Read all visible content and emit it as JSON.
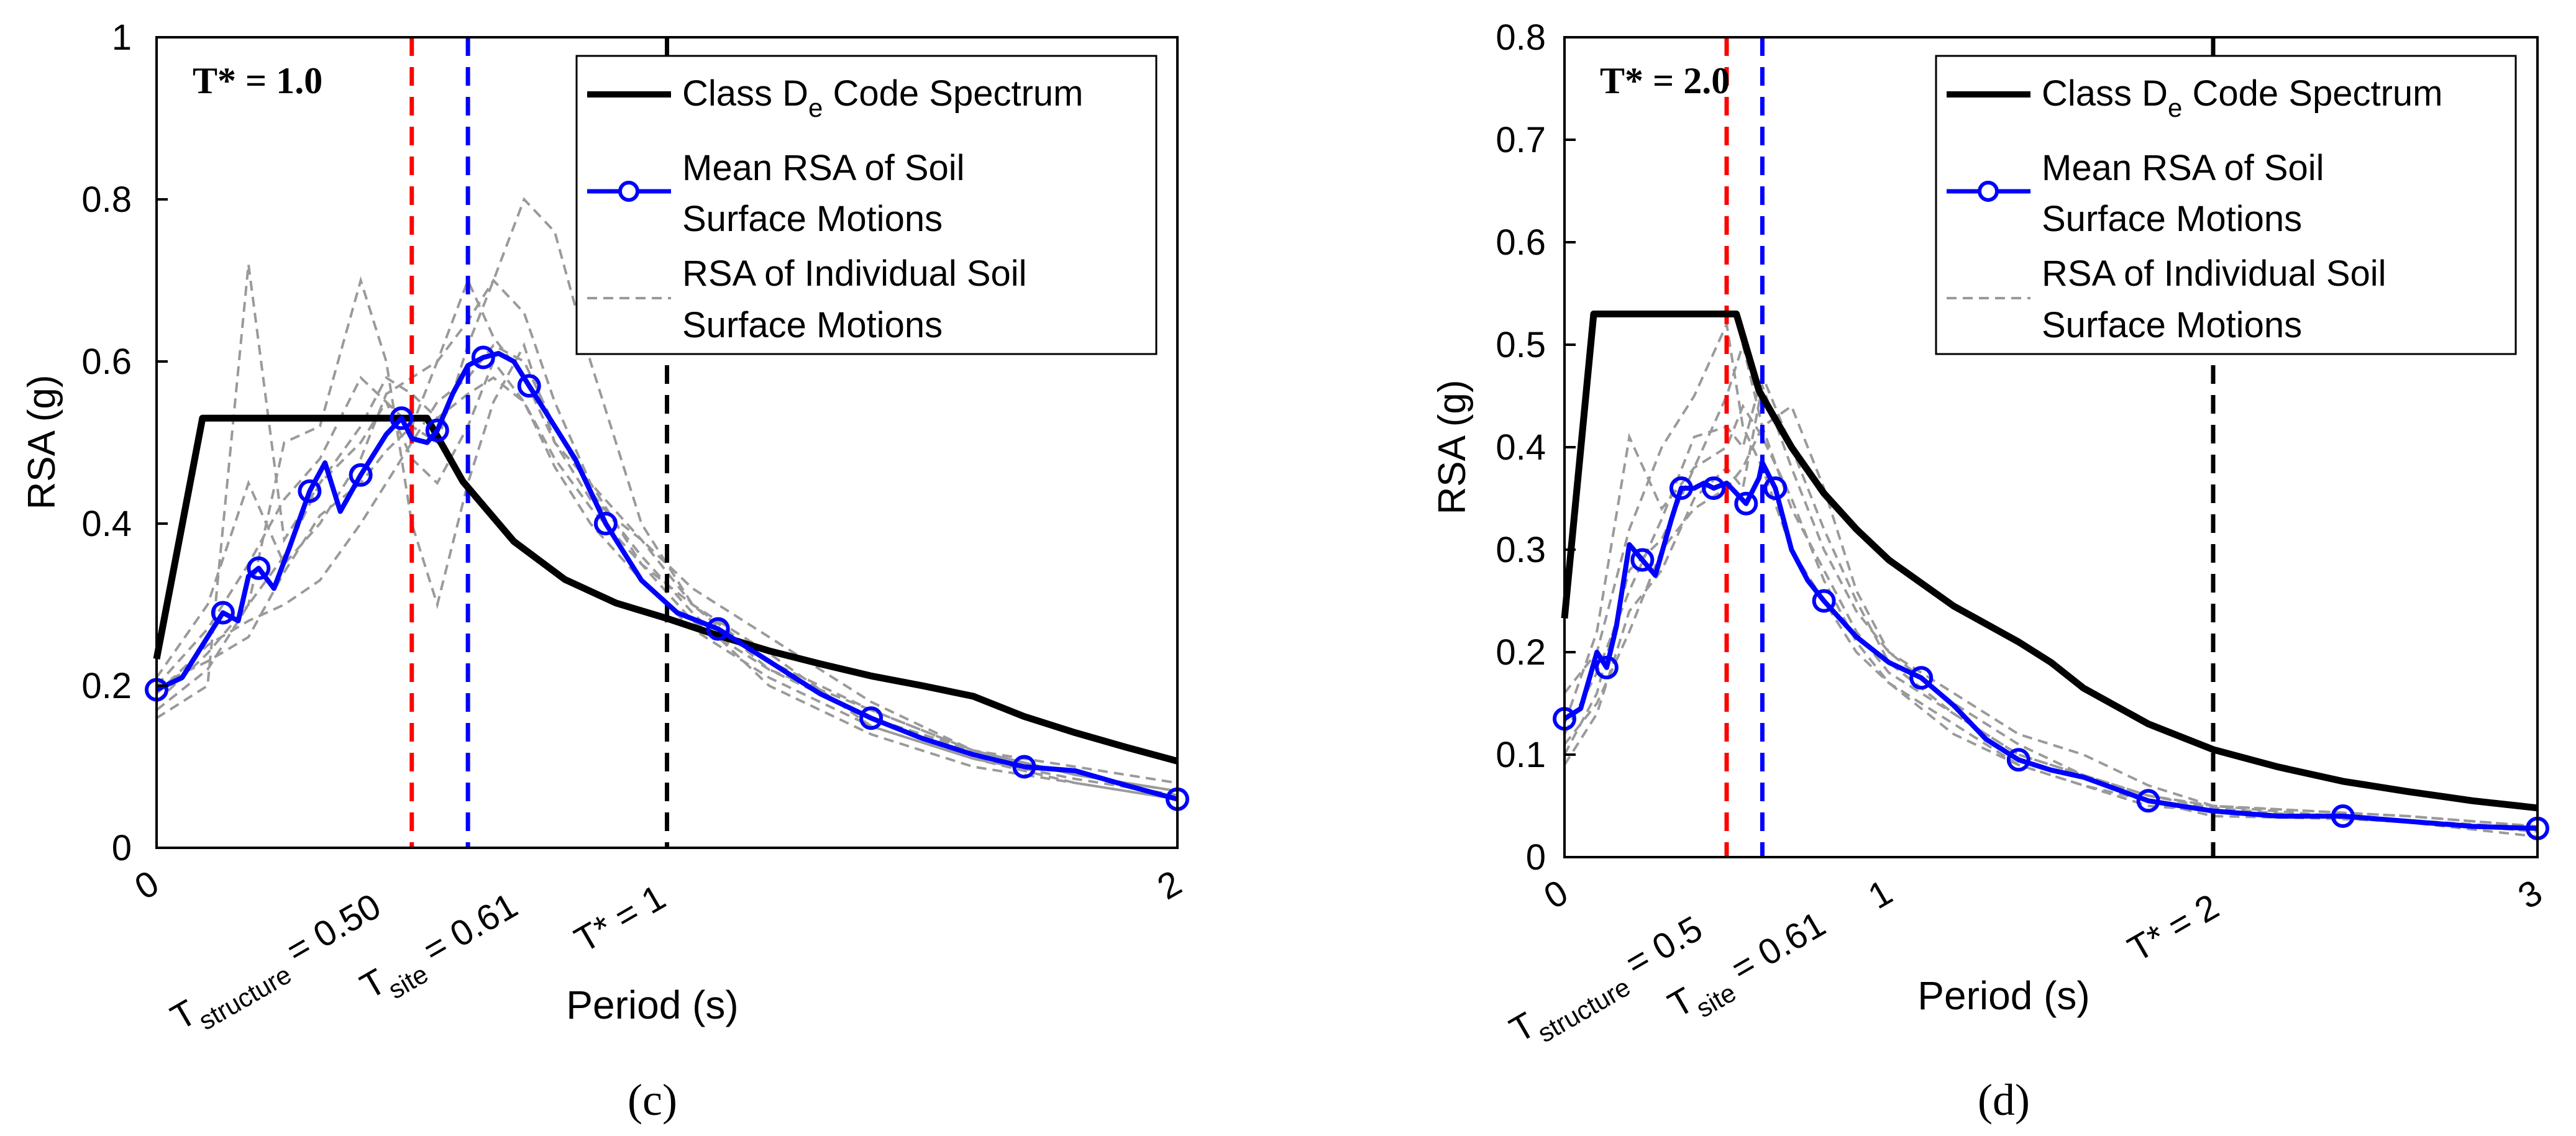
{
  "figure": {
    "panels": [
      {
        "label": "(c)",
        "annotation": "T* = 1.0",
        "xlabel": "Period (s)",
        "ylabel": "RSA (g)",
        "xlim": [
          0,
          2
        ],
        "ylim": [
          0,
          1
        ],
        "xticks": [
          "0",
          "2"
        ],
        "yticks": [
          "0",
          "0.2",
          "0.4",
          "0.6",
          "0.8",
          "1"
        ],
        "period_labels": {
          "structure": {
            "main": "T",
            "sub": "structure",
            "rest": " = 0.50",
            "value": 0.5
          },
          "site": {
            "main": "T",
            "sub": "site",
            "rest": " = 0.61",
            "value": 0.61
          },
          "tstar": {
            "text": "T* = 1",
            "value": 1.0
          }
        },
        "legend": {
          "code_a": "Class D",
          "code_sub": "e",
          "code_b": " Code Spectrum",
          "mean_1": "Mean RSA of Soil",
          "mean_2": "Surface Motions",
          "ind_1": "RSA of Individual Soil",
          "ind_2": "Surface Motions"
        }
      },
      {
        "label": "(d)",
        "annotation": "T* = 2.0",
        "xlabel": "Period (s)",
        "ylabel": "RSA (g)",
        "xlim": [
          0,
          3
        ],
        "ylim": [
          0,
          0.8
        ],
        "xticks": [
          "0",
          "1",
          "3"
        ],
        "yticks": [
          "0",
          "0.1",
          "0.2",
          "0.3",
          "0.4",
          "0.5",
          "0.6",
          "0.7",
          "0.8"
        ],
        "period_labels": {
          "structure": {
            "main": "T",
            "sub": "structure",
            "rest": " = 0.5",
            "value": 0.5
          },
          "site": {
            "main": "T",
            "sub": "site",
            "rest": " = 0.61",
            "value": 0.61
          },
          "tstar": {
            "text": "T* = 2",
            "value": 2.0
          }
        },
        "legend": {
          "code_a": "Class D",
          "code_sub": "e",
          "code_b": " Code Spectrum",
          "mean_1": "Mean RSA of Soil",
          "mean_2": "Surface Motions",
          "ind_1": "RSA of Individual Soil",
          "ind_2": "Surface Motions"
        }
      }
    ]
  },
  "colors": {
    "code": "#000000",
    "mean": "#0000ff",
    "individual": "#9a9a9a",
    "structure_line": "#ff0000",
    "site_line": "#0000ff",
    "tstar_line": "#000000"
  },
  "chart_data": [
    {
      "type": "line",
      "title": "T* = 1.0",
      "xlabel": "Period (s)",
      "ylabel": "RSA (g)",
      "xlim": [
        0,
        2
      ],
      "ylim": [
        0,
        1
      ],
      "grid": false,
      "legend_position": "top-right",
      "vlines": [
        {
          "x": 0.5,
          "color": "red",
          "label": "T structure = 0.50"
        },
        {
          "x": 0.61,
          "color": "blue",
          "label": "T site = 0.61"
        },
        {
          "x": 1.0,
          "color": "black",
          "label": "T* = 1"
        }
      ],
      "series": [
        {
          "name": "Class De Code Spectrum",
          "style": "solid-black",
          "x": [
            0.0,
            0.09,
            0.2,
            0.3,
            0.4,
            0.45,
            0.48,
            0.53,
            0.6,
            0.7,
            0.8,
            0.9,
            1.0,
            1.1,
            1.2,
            1.3,
            1.4,
            1.5,
            1.6,
            1.7,
            1.8,
            1.9,
            2.0
          ],
          "y": [
            0.233,
            0.53,
            0.53,
            0.53,
            0.53,
            0.53,
            0.53,
            0.53,
            0.452,
            0.378,
            0.331,
            0.302,
            0.283,
            0.262,
            0.243,
            0.227,
            0.212,
            0.2,
            0.187,
            0.162,
            0.142,
            0.124,
            0.107
          ]
        },
        {
          "name": "Mean RSA of Soil Surface Motions",
          "style": "blue-line-circles",
          "x": [
            0.0,
            0.05,
            0.1,
            0.13,
            0.16,
            0.18,
            0.2,
            0.23,
            0.26,
            0.3,
            0.33,
            0.36,
            0.4,
            0.43,
            0.45,
            0.48,
            0.5,
            0.53,
            0.55,
            0.58,
            0.61,
            0.64,
            0.67,
            0.7,
            0.73,
            0.78,
            0.82,
            0.88,
            0.95,
            1.02,
            1.1,
            1.2,
            1.3,
            1.4,
            1.5,
            1.6,
            1.7,
            1.8,
            1.9,
            2.0
          ],
          "y": [
            0.195,
            0.21,
            0.26,
            0.29,
            0.28,
            0.335,
            0.345,
            0.32,
            0.37,
            0.44,
            0.475,
            0.415,
            0.46,
            0.49,
            0.51,
            0.53,
            0.505,
            0.5,
            0.515,
            0.56,
            0.595,
            0.605,
            0.61,
            0.6,
            0.57,
            0.52,
            0.48,
            0.4,
            0.33,
            0.29,
            0.27,
            0.23,
            0.19,
            0.16,
            0.135,
            0.115,
            0.1,
            0.095,
            0.077,
            0.06
          ]
        },
        {
          "name": "RSA of Individual Soil Surface Motions",
          "style": "gray-dashed",
          "x": [
            0.0,
            0.1,
            0.18,
            0.25,
            0.32,
            0.4,
            0.45,
            0.5,
            0.55,
            0.61,
            0.66,
            0.72,
            0.78,
            0.85,
            0.95,
            1.05,
            1.2,
            1.4,
            1.6,
            1.8,
            2.0
          ],
          "y": [
            [
              0.17,
              0.22,
              0.3,
              0.36,
              0.45,
              0.5,
              0.55,
              0.52,
              0.5,
              0.62,
              0.7,
              0.8,
              0.76,
              0.6,
              0.4,
              0.3,
              0.22,
              0.17,
              0.12,
              0.09,
              0.07
            ],
            [
              0.2,
              0.27,
              0.35,
              0.43,
              0.48,
              0.58,
              0.55,
              0.48,
              0.45,
              0.52,
              0.6,
              0.55,
              0.48,
              0.42,
              0.35,
              0.3,
              0.24,
              0.15,
              0.11,
              0.08,
              0.06
            ],
            [
              0.18,
              0.24,
              0.3,
              0.5,
              0.52,
              0.7,
              0.6,
              0.4,
              0.3,
              0.45,
              0.55,
              0.62,
              0.5,
              0.43,
              0.38,
              0.32,
              0.26,
              0.18,
              0.12,
              0.09,
              0.07
            ],
            [
              0.21,
              0.3,
              0.45,
              0.35,
              0.4,
              0.48,
              0.56,
              0.58,
              0.6,
              0.65,
              0.7,
              0.66,
              0.55,
              0.45,
              0.35,
              0.28,
              0.22,
              0.16,
              0.12,
              0.1,
              0.08
            ],
            [
              0.19,
              0.25,
              0.28,
              0.3,
              0.33,
              0.4,
              0.45,
              0.5,
              0.55,
              0.58,
              0.62,
              0.6,
              0.52,
              0.44,
              0.36,
              0.29,
              0.2,
              0.14,
              0.1,
              0.08,
              0.06
            ],
            [
              0.16,
              0.2,
              0.72,
              0.38,
              0.45,
              0.52,
              0.58,
              0.56,
              0.53,
              0.56,
              0.58,
              0.55,
              0.47,
              0.4,
              0.33,
              0.27,
              0.21,
              0.15,
              0.11,
              0.085,
              0.065
            ],
            [
              0.2,
              0.23,
              0.26,
              0.34,
              0.41,
              0.45,
              0.49,
              0.52,
              0.6,
              0.7,
              0.63,
              0.58,
              0.5,
              0.45,
              0.38,
              0.3,
              0.23,
              0.17,
              0.12,
              0.09,
              0.07
            ]
          ]
        }
      ]
    },
    {
      "type": "line",
      "title": "T* = 2.0",
      "xlabel": "Period (s)",
      "ylabel": "RSA (g)",
      "xlim": [
        0,
        3
      ],
      "ylim": [
        0,
        0.8
      ],
      "grid": false,
      "legend_position": "top-right",
      "vlines": [
        {
          "x": 0.5,
          "color": "red",
          "label": "T structure = 0.5"
        },
        {
          "x": 0.61,
          "color": "blue",
          "label": "T site = 0.61"
        },
        {
          "x": 2.0,
          "color": "black",
          "label": "T* = 2"
        }
      ],
      "series": [
        {
          "name": "Class De Code Spectrum",
          "style": "solid-black",
          "x": [
            0.0,
            0.09,
            0.2,
            0.3,
            0.4,
            0.45,
            0.53,
            0.6,
            0.7,
            0.8,
            0.9,
            1.0,
            1.2,
            1.4,
            1.5,
            1.6,
            1.8,
            2.0,
            2.2,
            2.4,
            2.6,
            2.8,
            3.0
          ],
          "y": [
            0.233,
            0.53,
            0.53,
            0.53,
            0.53,
            0.53,
            0.53,
            0.455,
            0.4,
            0.355,
            0.32,
            0.29,
            0.245,
            0.21,
            0.19,
            0.165,
            0.13,
            0.105,
            0.088,
            0.074,
            0.064,
            0.055,
            0.048
          ]
        },
        {
          "name": "Mean RSA of Soil Surface Motions",
          "style": "blue-line-circles",
          "x": [
            0.0,
            0.05,
            0.1,
            0.13,
            0.16,
            0.2,
            0.24,
            0.28,
            0.33,
            0.36,
            0.4,
            0.43,
            0.46,
            0.5,
            0.53,
            0.56,
            0.6,
            0.61,
            0.65,
            0.7,
            0.75,
            0.8,
            0.9,
            1.0,
            1.1,
            1.2,
            1.3,
            1.4,
            1.5,
            1.6,
            1.8,
            2.0,
            2.2,
            2.4,
            2.6,
            2.8,
            3.0
          ],
          "y": [
            0.135,
            0.145,
            0.2,
            0.185,
            0.225,
            0.305,
            0.29,
            0.275,
            0.33,
            0.36,
            0.36,
            0.365,
            0.36,
            0.365,
            0.355,
            0.345,
            0.37,
            0.385,
            0.36,
            0.3,
            0.27,
            0.25,
            0.215,
            0.19,
            0.175,
            0.148,
            0.115,
            0.095,
            0.085,
            0.078,
            0.055,
            0.045,
            0.04,
            0.04,
            0.035,
            0.03,
            0.028
          ]
        },
        {
          "name": "RSA of Individual Soil Surface Motions",
          "style": "gray-dashed",
          "x": [
            0.0,
            0.1,
            0.2,
            0.3,
            0.4,
            0.5,
            0.55,
            0.61,
            0.7,
            0.8,
            0.9,
            1.0,
            1.2,
            1.4,
            1.6,
            1.8,
            2.0,
            2.3,
            2.6,
            3.0
          ],
          "y": [
            [
              0.1,
              0.16,
              0.28,
              0.31,
              0.38,
              0.45,
              0.5,
              0.42,
              0.34,
              0.28,
              0.22,
              0.18,
              0.14,
              0.1,
              0.08,
              0.06,
              0.05,
              0.045,
              0.04,
              0.03
            ],
            [
              0.16,
              0.2,
              0.32,
              0.4,
              0.45,
              0.52,
              0.42,
              0.38,
              0.3,
              0.25,
              0.2,
              0.17,
              0.13,
              0.09,
              0.07,
              0.05,
              0.045,
              0.04,
              0.035,
              0.025
            ],
            [
              0.09,
              0.14,
              0.24,
              0.28,
              0.35,
              0.38,
              0.36,
              0.46,
              0.38,
              0.3,
              0.24,
              0.2,
              0.15,
              0.11,
              0.08,
              0.06,
              0.05,
              0.045,
              0.04,
              0.03
            ],
            [
              0.13,
              0.22,
              0.41,
              0.34,
              0.38,
              0.4,
              0.44,
              0.41,
              0.35,
              0.27,
              0.21,
              0.17,
              0.12,
              0.09,
              0.07,
              0.055,
              0.04,
              0.038,
              0.035,
              0.025
            ],
            [
              0.11,
              0.15,
              0.22,
              0.3,
              0.34,
              0.36,
              0.38,
              0.42,
              0.44,
              0.36,
              0.26,
              0.2,
              0.16,
              0.12,
              0.1,
              0.07,
              0.05,
              0.042,
              0.036,
              0.028
            ],
            [
              0.12,
              0.18,
              0.26,
              0.33,
              0.41,
              0.42,
              0.4,
              0.47,
              0.4,
              0.32,
              0.25,
              0.19,
              0.14,
              0.1,
              0.08,
              0.06,
              0.048,
              0.04,
              0.034,
              0.02
            ]
          ]
        }
      ]
    }
  ]
}
